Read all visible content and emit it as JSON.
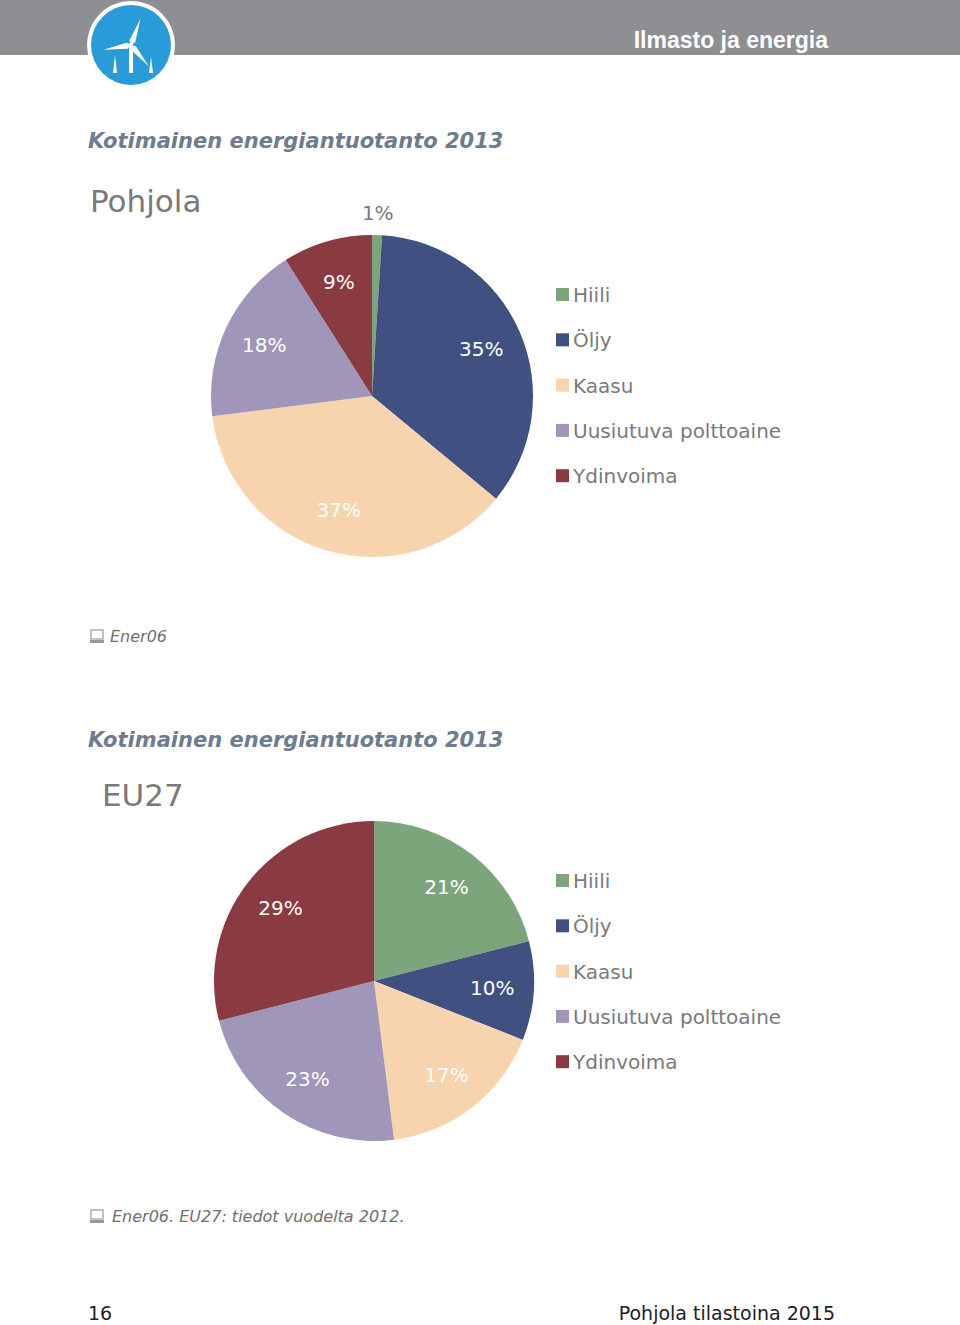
{
  "page": {
    "header": "Ilmasto ja energia",
    "page_number": "16",
    "footer": "Pohjola tilastoina 2015"
  },
  "chart_data": [
    {
      "type": "pie",
      "title": "Kotimainen energiantuotanto 2013",
      "subtitle": "Pohjola",
      "categories": [
        "Hiili",
        "Öljy",
        "Kaasu",
        "Uusiutuva polttoaine",
        "Ydinvoima"
      ],
      "values": [
        1,
        35,
        37,
        18,
        9
      ],
      "value_labels": [
        "1%",
        "35%",
        "37%",
        "18%",
        "9%"
      ],
      "colors": [
        "#7ca57c",
        "#3f5081",
        "#f7d3ae",
        "#9f96b9",
        "#8a3a41"
      ],
      "data_labels": true,
      "legend": "right",
      "annotations": [
        "Ener06"
      ]
    },
    {
      "type": "pie",
      "title": "Kotimainen energiantuotanto 2013",
      "subtitle": "EU27",
      "categories": [
        "Hiili",
        "Öljy",
        "Kaasu",
        "Uusiutuva polttoaine",
        "Ydinvoima"
      ],
      "values": [
        21,
        10,
        17,
        23,
        29
      ],
      "value_labels": [
        "21%",
        "10%",
        "17%",
        "23%",
        "29%"
      ],
      "colors": [
        "#7ca57c",
        "#3f5081",
        "#f7d3ae",
        "#9f96b9",
        "#8a3a41"
      ],
      "data_labels": true,
      "legend": "right",
      "annotations": [
        "Ener06. EU27: tiedot vuodelta 2012."
      ]
    }
  ]
}
